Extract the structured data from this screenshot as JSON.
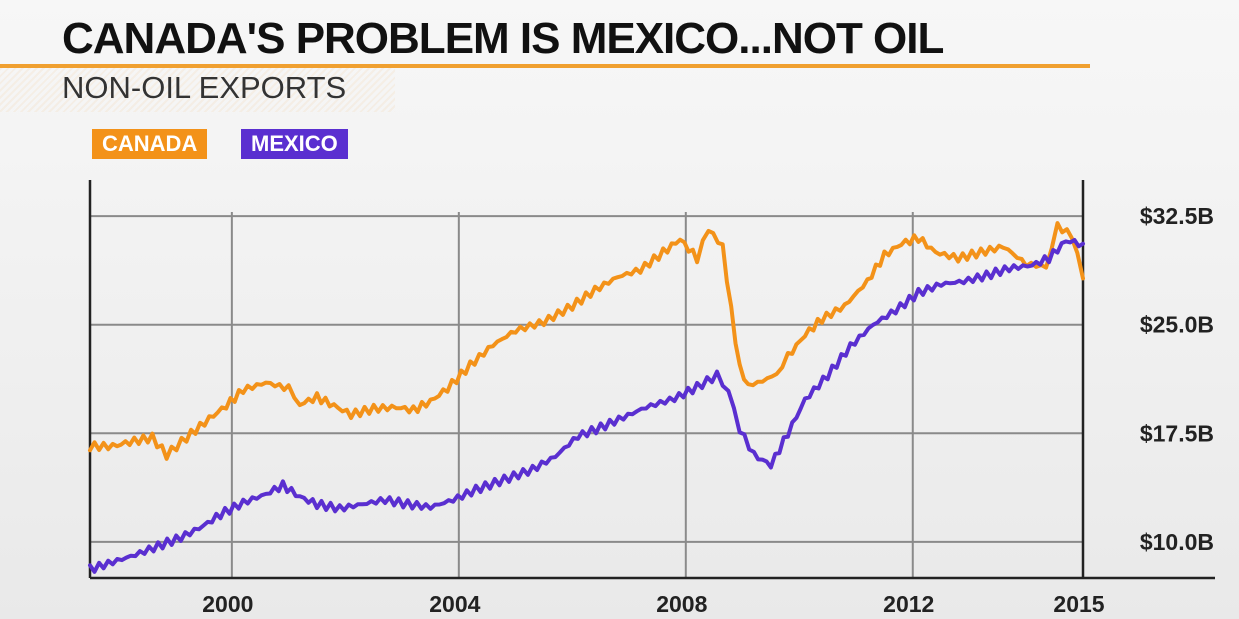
{
  "header": {
    "title": "CANADA'S PROBLEM IS MEXICO...NOT OIL",
    "subtitle": "NON-OIL EXPORTS"
  },
  "colors": {
    "canada": "#f39219",
    "mexico": "#5a2fd0",
    "accent_rule": "#f0a030",
    "grid": "#8a8a8a"
  },
  "chart_data": {
    "type": "line",
    "title": "CANADA'S PROBLEM IS MEXICO...NOT OIL",
    "subtitle": "NON-OIL EXPORTS",
    "xlabel": "",
    "ylabel": "",
    "xlim": [
      1997.5,
      2015.0
    ],
    "ylim": [
      7.5,
      35.0
    ],
    "x_ticks": [
      2000,
      2004,
      2008,
      2012,
      2015
    ],
    "x_tick_labels": [
      "2000",
      "2004",
      "2008",
      "2012",
      "2015"
    ],
    "y_ticks": [
      10.0,
      17.5,
      25.0,
      32.5
    ],
    "y_tick_labels": [
      "$10.0B",
      "$17.5B",
      "$25.0B",
      "$32.5B"
    ],
    "grid": true,
    "legend_placement": "top-left",
    "series": [
      {
        "name": "CANADA",
        "color": "#f39219",
        "points": [
          [
            1997.5,
            16.6
          ],
          [
            1997.9,
            16.6
          ],
          [
            1998.2,
            16.9
          ],
          [
            1998.6,
            17.2
          ],
          [
            1998.85,
            16.0
          ],
          [
            1999.2,
            17.2
          ],
          [
            1999.6,
            18.5
          ],
          [
            1999.9,
            19.4
          ],
          [
            2000.2,
            20.5
          ],
          [
            2000.6,
            21.0
          ],
          [
            2001.0,
            20.6
          ],
          [
            2001.2,
            19.5
          ],
          [
            2001.5,
            20.0
          ],
          [
            2001.8,
            19.4
          ],
          [
            2002.1,
            18.8
          ],
          [
            2002.5,
            19.2
          ],
          [
            2002.9,
            19.3
          ],
          [
            2003.2,
            19.1
          ],
          [
            2003.5,
            19.7
          ],
          [
            2003.8,
            20.6
          ],
          [
            2004.2,
            22.2
          ],
          [
            2004.6,
            23.6
          ],
          [
            2005.0,
            24.6
          ],
          [
            2005.5,
            25.2
          ],
          [
            2006.0,
            26.3
          ],
          [
            2006.4,
            27.4
          ],
          [
            2006.8,
            28.3
          ],
          [
            2007.2,
            28.8
          ],
          [
            2007.6,
            30.0
          ],
          [
            2007.9,
            30.9
          ],
          [
            2008.2,
            29.6
          ],
          [
            2008.4,
            31.6
          ],
          [
            2008.65,
            30.4
          ],
          [
            2008.8,
            26.0
          ],
          [
            2008.95,
            22.0
          ],
          [
            2009.1,
            20.8
          ],
          [
            2009.35,
            21.1
          ],
          [
            2009.6,
            21.6
          ],
          [
            2009.8,
            22.8
          ],
          [
            2010.1,
            24.3
          ],
          [
            2010.4,
            25.4
          ],
          [
            2010.8,
            26.3
          ],
          [
            2011.2,
            28.0
          ],
          [
            2011.5,
            29.8
          ],
          [
            2011.8,
            30.6
          ],
          [
            2012.1,
            31.0
          ],
          [
            2012.4,
            30.0
          ],
          [
            2012.8,
            29.6
          ],
          [
            2013.2,
            30.0
          ],
          [
            2013.6,
            30.4
          ],
          [
            2014.0,
            29.2
          ],
          [
            2014.35,
            29.0
          ],
          [
            2014.55,
            31.8
          ],
          [
            2014.8,
            31.2
          ],
          [
            2015.0,
            28.2
          ]
        ]
      },
      {
        "name": "MEXICO",
        "color": "#5a2fd0",
        "points": [
          [
            1997.5,
            8.1
          ],
          [
            1997.9,
            8.6
          ],
          [
            1998.3,
            9.1
          ],
          [
            1998.7,
            9.7
          ],
          [
            1999.1,
            10.3
          ],
          [
            1999.5,
            11.1
          ],
          [
            1999.8,
            11.9
          ],
          [
            2000.2,
            12.7
          ],
          [
            2000.6,
            13.3
          ],
          [
            2000.9,
            13.9
          ],
          [
            2001.2,
            13.1
          ],
          [
            2001.5,
            12.6
          ],
          [
            2001.9,
            12.3
          ],
          [
            2002.3,
            12.6
          ],
          [
            2002.7,
            12.9
          ],
          [
            2003.1,
            12.6
          ],
          [
            2003.5,
            12.4
          ],
          [
            2003.9,
            12.9
          ],
          [
            2004.3,
            13.6
          ],
          [
            2004.8,
            14.3
          ],
          [
            2005.3,
            15.0
          ],
          [
            2005.7,
            15.9
          ],
          [
            2006.1,
            17.3
          ],
          [
            2006.5,
            17.9
          ],
          [
            2006.9,
            18.6
          ],
          [
            2007.3,
            19.3
          ],
          [
            2007.8,
            19.9
          ],
          [
            2008.2,
            20.7
          ],
          [
            2008.55,
            21.5
          ],
          [
            2008.75,
            20.4
          ],
          [
            2008.95,
            17.8
          ],
          [
            2009.2,
            16.0
          ],
          [
            2009.5,
            15.3
          ],
          [
            2009.8,
            17.5
          ],
          [
            2010.1,
            19.8
          ],
          [
            2010.5,
            21.5
          ],
          [
            2010.9,
            23.5
          ],
          [
            2011.3,
            25.0
          ],
          [
            2011.7,
            26.0
          ],
          [
            2012.1,
            27.2
          ],
          [
            2012.5,
            27.8
          ],
          [
            2012.9,
            28.0
          ],
          [
            2013.3,
            28.4
          ],
          [
            2013.7,
            28.9
          ],
          [
            2014.1,
            29.1
          ],
          [
            2014.4,
            29.6
          ],
          [
            2014.7,
            30.8
          ],
          [
            2015.0,
            30.6
          ]
        ]
      }
    ]
  }
}
